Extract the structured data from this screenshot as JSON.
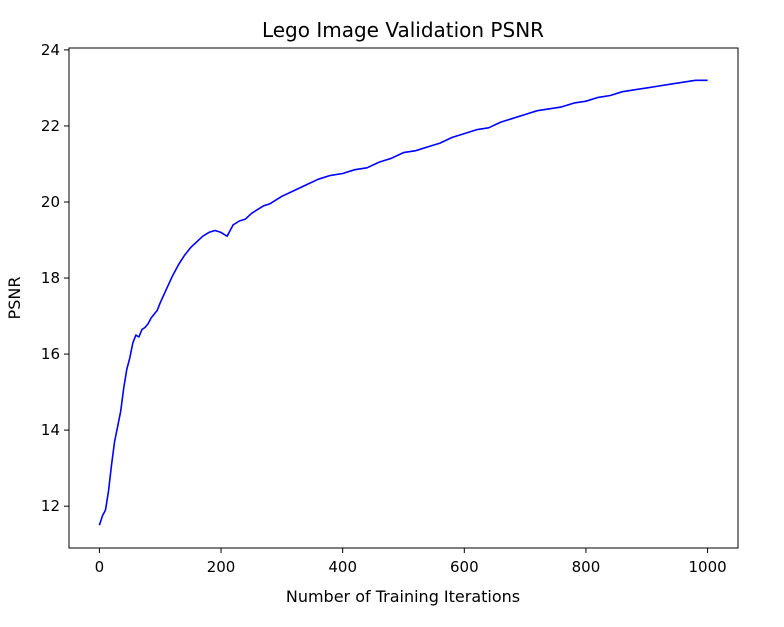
{
  "chart_data": {
    "type": "line",
    "title": "Lego Image Validation PSNR",
    "xlabel": "Number of Training Iterations",
    "ylabel": "PSNR",
    "xlim": [
      -50,
      1050
    ],
    "ylim": [
      10.9,
      24.05
    ],
    "xticks": [
      0,
      200,
      400,
      600,
      800,
      1000
    ],
    "yticks": [
      12,
      14,
      16,
      18,
      20,
      22,
      24
    ],
    "grid": false,
    "series": [
      {
        "color": "#0000ff",
        "x": [
          0,
          5,
          10,
          15,
          20,
          25,
          30,
          35,
          40,
          45,
          50,
          55,
          60,
          65,
          70,
          75,
          80,
          85,
          90,
          95,
          100,
          110,
          120,
          130,
          140,
          150,
          160,
          170,
          180,
          190,
          200,
          210,
          220,
          230,
          240,
          250,
          260,
          270,
          280,
          290,
          300,
          320,
          340,
          360,
          380,
          400,
          420,
          440,
          460,
          480,
          500,
          520,
          540,
          560,
          580,
          600,
          620,
          640,
          660,
          680,
          700,
          720,
          740,
          760,
          780,
          800,
          820,
          840,
          860,
          880,
          900,
          920,
          940,
          960,
          980,
          1000
        ],
        "values": [
          11.5,
          11.75,
          11.9,
          12.4,
          13.1,
          13.7,
          14.1,
          14.5,
          15.1,
          15.6,
          15.9,
          16.3,
          16.5,
          16.45,
          16.65,
          16.7,
          16.8,
          16.95,
          17.05,
          17.15,
          17.35,
          17.7,
          18.05,
          18.35,
          18.6,
          18.8,
          18.95,
          19.1,
          19.2,
          19.25,
          19.2,
          19.1,
          19.4,
          19.5,
          19.55,
          19.7,
          19.8,
          19.9,
          19.95,
          20.05,
          20.15,
          20.3,
          20.45,
          20.6,
          20.7,
          20.75,
          20.85,
          20.9,
          21.05,
          21.15,
          21.3,
          21.35,
          21.45,
          21.55,
          21.7,
          21.8,
          21.9,
          21.95,
          22.1,
          22.2,
          22.3,
          22.4,
          22.45,
          22.5,
          22.6,
          22.65,
          22.75,
          22.8,
          22.9,
          22.95,
          23.0,
          23.05,
          23.1,
          23.15,
          23.2,
          23.2
        ]
      }
    ]
  }
}
